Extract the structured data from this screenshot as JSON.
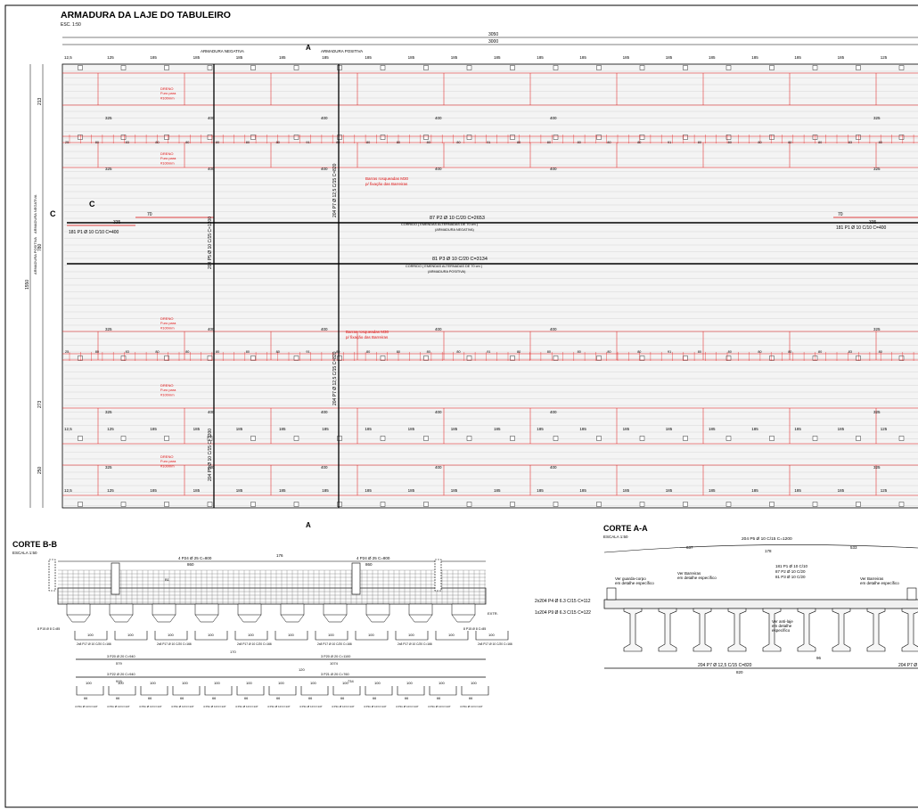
{
  "plan": {
    "title": "ARMADURA DA LAJE DO TABULEIRO",
    "scale": "ESC. 1:50",
    "overall_dims": [
      "3050",
      "3000"
    ],
    "label_neg": "ARMADURA  NEGATIVA",
    "label_pos": "ARMADURA  POSITIVA",
    "section_mark_a": "A",
    "section_mark_c": "C",
    "top_spacing": [
      "12,5",
      "125",
      "185",
      "185",
      "185",
      "185",
      "185",
      "185",
      "185",
      "185",
      "185",
      "185",
      "185",
      "185",
      "185",
      "185",
      "185",
      "185",
      "185",
      "125"
    ],
    "row_spacing": [
      "325",
      "400",
      "400",
      "400",
      "400",
      "325"
    ],
    "mid_spacing": [
      "25",
      "80",
      "83",
      "80",
      "80",
      "80",
      "80",
      "80",
      "91",
      "80",
      "80",
      "80",
      "80",
      "80",
      "91",
      "80",
      "80",
      "80",
      "80",
      "80",
      "91",
      "80",
      "80",
      "80",
      "80",
      "80",
      "83",
      "80"
    ],
    "dreno": [
      "DRENO",
      "Furo para",
      "#100mm"
    ],
    "barras": [
      "Barras rosqueadas M30",
      "p/ fixação das Barreiras"
    ],
    "bar_p1_left": "181 P1 Ø 10 C/10 C=400",
    "bar_p1_right": "181 P1 Ø 10 C/10 C=400",
    "lap_left": "70",
    "lap_right": "70",
    "len_335_left": "335",
    "len_335_right": "335",
    "bar_p2": "87 P2 Ø 10 C/20 C=2653",
    "bar_p2_sub1": "CORRIDO ( EMENDAS ALTERNADAS DE 70 cm )",
    "bar_p2_sub2": "(ARMADURA  NEGATIVA)",
    "bar_p3": "81 P3 Ø 10 C/20 C=3134",
    "bar_p3_sub1": "CORRIDO ( EMENDAS ALTERNADAS DE 70 cm )",
    "bar_p3_sub2": "(ARMADURA  POSITIVA)",
    "vert_p5_top": "204 P5 Ø 10 C/15 C=1200",
    "vert_p7_top": "204 P7 Ø 12,5 C/15 C=820",
    "vert_p5_bot": "204 P5 Ø 10 C/15 C=1200",
    "vert_p7_bot": "204 P7 Ø 12,5 C/15 C=820",
    "left_dims": [
      "213",
      "213",
      "1550",
      "780",
      "273",
      "250"
    ],
    "left_labels": [
      "ARMADURA NEGATIVA",
      "ARMADURA POSITIVA"
    ]
  },
  "corte_bb": {
    "title": "CORTE B-B",
    "scale": "ESCALA  1:50",
    "top_bar_left": "4 P24 Ø 25 C=800",
    "top_bar_left_len": "860",
    "top_bar_right": "4 P24 Ø 25 C=800",
    "top_bar_right_len": "860",
    "mid_dim": "176",
    "right_p4": "2x204 P4 Ø 6.3 C/15 C=112",
    "right_p9": "1x204 P9 Ø 6.3 C/15 C=122",
    "stirrup_label": "2x8 P17 Ø 10 C/20 C=166",
    "stirrup_val": "100",
    "end_label": "8 P15 Ø 8 C=85",
    "long_bar_1": "3 P20 Ø 20 C=940",
    "long_bar_1_len": "579",
    "long_bar_2": "3 P20 Ø 20 C=1100",
    "long_bar_2_len": "1074",
    "long_bar_3": "3 P22 Ø 20 C=940",
    "long_bar_3_len": "915",
    "long_bar_4": "3 P21 Ø 20 C=760",
    "long_bar_4_len": "734",
    "dim_170": "170",
    "dim_120": "120",
    "bottom_stirrup": "4 P11 Ø 10 C=147",
    "bottom_vals": [
      "66",
      "100"
    ],
    "gap_label": "EXTR.",
    "rebar_b1": "B1"
  },
  "corte_aa": {
    "title": "CORTE A-A",
    "scale": "ESCALA  1:50",
    "top_bar": "204 P5 Ø 10 C/15 C=1200",
    "top_dims": [
      "637",
      "178",
      "533"
    ],
    "note_left": [
      "Ver guarda-corpo",
      "em detalhe específico"
    ],
    "note_barreira": [
      "Ver Barreiras",
      "em detalhe específico"
    ],
    "note_barreira_r": [
      "Ver Barreiras",
      "em detalhe específico"
    ],
    "bars_list": [
      "181 P1 Ø 10 C/10",
      "87 P2 Ø 10 C/20",
      "81 P3 Ø 10 C/20"
    ],
    "note_anti": [
      "Ver anti-laje",
      "em detalhe",
      "específico"
    ],
    "dim_96": "96",
    "bottom_bar": "204 P7 Ø 12,5 C/15 C=820",
    "bottom_len": "820",
    "bottom_bar_r": "204 P7 Ø"
  },
  "colors": {
    "red": "#e01010",
    "dark": "#000000",
    "grey": "#888888"
  }
}
